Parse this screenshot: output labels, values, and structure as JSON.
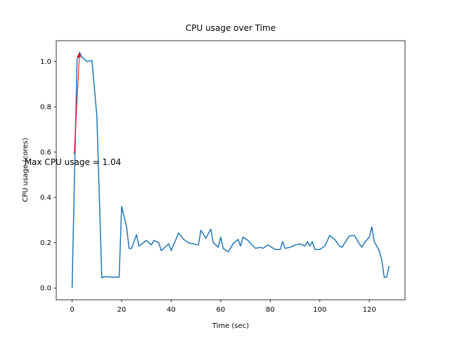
{
  "chart_data": {
    "type": "line",
    "title": "CPU usage over Time",
    "x_label": "Time (sec)",
    "y_label": "CPU usage (cores)",
    "x": [
      0,
      2,
      3,
      4,
      6,
      8,
      10,
      12,
      13,
      16,
      19,
      20,
      22,
      23,
      24,
      26,
      27,
      30,
      32,
      33,
      35,
      36,
      39,
      40,
      43,
      45,
      47,
      51,
      52,
      54,
      56,
      57,
      59,
      60,
      61,
      63,
      65,
      67,
      68,
      69,
      71,
      74,
      76,
      77,
      79,
      82,
      84,
      85,
      86,
      88,
      90,
      92,
      94,
      95,
      96,
      97,
      98,
      100,
      102,
      104,
      106,
      108,
      109,
      111,
      112,
      114,
      116,
      117,
      118,
      120,
      121,
      122,
      124,
      125,
      126,
      127,
      128
    ],
    "series": [
      {
        "name": "CPU usage",
        "color": "#1f77b4",
        "values": [
          0,
          1.01,
          1.04,
          1.02,
          1.0,
          1.005,
          0.76,
          0.045,
          0.05,
          0.048,
          0.048,
          0.36,
          0.27,
          0.175,
          0.175,
          0.235,
          0.185,
          0.21,
          0.19,
          0.21,
          0.2,
          0.165,
          0.195,
          0.165,
          0.243,
          0.215,
          0.2,
          0.19,
          0.255,
          0.22,
          0.26,
          0.2,
          0.18,
          0.225,
          0.175,
          0.16,
          0.195,
          0.215,
          0.185,
          0.225,
          0.21,
          0.175,
          0.18,
          0.175,
          0.19,
          0.17,
          0.17,
          0.205,
          0.175,
          0.18,
          0.19,
          0.195,
          0.185,
          0.205,
          0.185,
          0.205,
          0.17,
          0.17,
          0.185,
          0.232,
          0.215,
          0.185,
          0.18,
          0.215,
          0.23,
          0.232,
          0.195,
          0.18,
          0.2,
          0.225,
          0.27,
          0.205,
          0.165,
          0.125,
          0.048,
          0.048,
          0.097
        ]
      }
    ],
    "annotation": {
      "text": "Max CPU usage = 1.04",
      "color": "red"
    },
    "xlim": [
      -6.4,
      134.4
    ],
    "ylim": [
      -0.052,
      1.092
    ],
    "xticks": [
      0,
      20,
      40,
      60,
      80,
      100,
      120
    ],
    "yticks": [
      {
        "value": 0,
        "label": "0.0"
      },
      {
        "value": 0.2,
        "label": "0.2"
      },
      {
        "value": 0.4,
        "label": "0.4"
      },
      {
        "value": 0.6,
        "label": "0.6"
      },
      {
        "value": 0.8,
        "label": "0.8"
      },
      {
        "value": 1,
        "label": "1.0"
      }
    ],
    "grid": false
  }
}
